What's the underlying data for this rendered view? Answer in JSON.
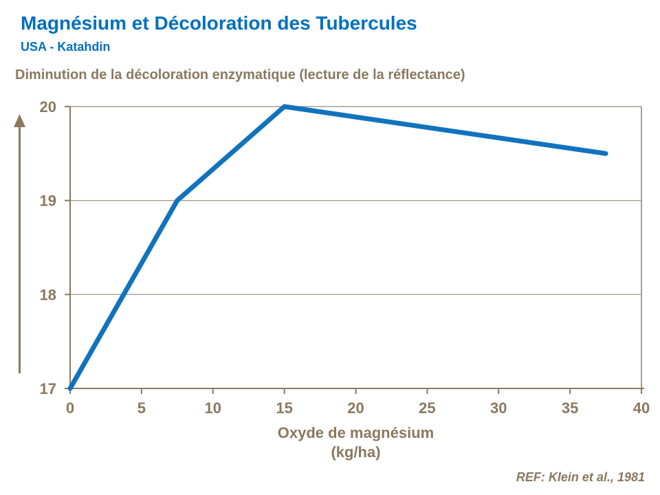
{
  "header": {
    "title": "Magnésium et Décoloration des Tubercules",
    "subtitle": "USA - Katahdin"
  },
  "chart": {
    "heading": "Diminution de la décoloration enzymatique (lecture de la réflectance)"
  },
  "footer": {
    "reference": "REF: Klein et al., 1981"
  },
  "colors": {
    "blue": "#0070C0",
    "taupe": "#8A795E",
    "line_blue": "#1173BD",
    "gridline": "#A79E8F",
    "axis": "#8A795E"
  },
  "chart_data": {
    "type": "line",
    "x": [
      0,
      7.5,
      15,
      37.5
    ],
    "values": [
      17,
      19,
      20,
      19.5
    ],
    "title": "Diminution de la décoloration enzymatique (lecture de la réflectance)",
    "xlabel": "Oxyde de magnésium",
    "xlabel_unit": "(kg/ha)",
    "ylabel": "",
    "xlim": [
      0,
      40
    ],
    "ylim": [
      17,
      20
    ],
    "x_ticks": [
      0,
      5,
      10,
      15,
      20,
      25,
      30,
      35,
      40
    ],
    "y_ticks": [
      17,
      18,
      19,
      20
    ],
    "grid": "horizontal",
    "legend": "none"
  }
}
